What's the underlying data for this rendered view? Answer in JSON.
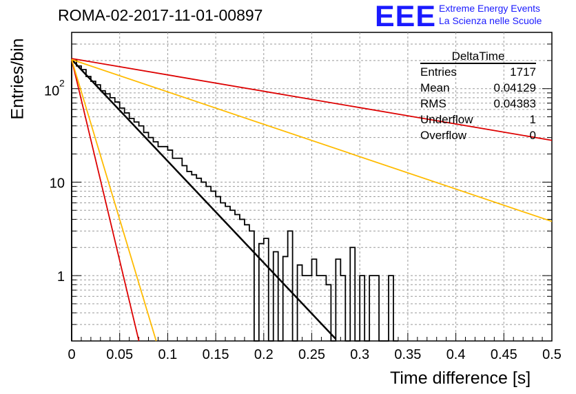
{
  "header": {
    "title": "ROMA-02-2017-11-01-00897",
    "logo_text": "EEE",
    "logo_line1": "Extreme Energy Events",
    "logo_line2": "La Scienza nelle Scuole"
  },
  "stats": {
    "title": "DeltaTime",
    "rows": [
      {
        "label": "Entries",
        "value": "1717"
      },
      {
        "label": "Mean",
        "value": "0.04129"
      },
      {
        "label": "RMS",
        "value": "0.04383"
      },
      {
        "label": "Underflow",
        "value": "1"
      },
      {
        "label": "Overflow",
        "value": "0"
      }
    ]
  },
  "chart_data": {
    "type": "bar",
    "xlabel": "Time difference [s]",
    "ylabel": "Entries/bin",
    "xlim": [
      0,
      0.5
    ],
    "ylim": [
      0.2,
      400
    ],
    "y_scale": "log",
    "grid": true,
    "x_ticks": [
      "0",
      "0.05",
      "0.1",
      "0.15",
      "0.2",
      "0.25",
      "0.3",
      "0.35",
      "0.4",
      "0.45",
      "0.5"
    ],
    "y_ticks": [
      {
        "value": 1,
        "label": "1"
      },
      {
        "value": 10,
        "label": "10"
      },
      {
        "value": 100,
        "label": "10",
        "exp": "2"
      }
    ],
    "histogram": {
      "bin_width": 0.005,
      "color": "#000000",
      "counts": [
        200,
        175,
        160,
        135,
        120,
        110,
        95,
        88,
        80,
        72,
        62,
        55,
        48,
        44,
        40,
        34,
        30,
        27,
        24,
        24,
        22,
        18,
        18,
        15,
        13,
        12,
        11,
        10,
        9,
        8,
        7,
        6,
        5.5,
        5,
        4.5,
        4,
        3.5,
        3,
        0,
        2.2,
        2.5,
        0,
        1.8,
        0,
        1.6,
        3,
        0,
        1.3,
        1,
        1,
        1.5,
        1,
        1,
        0.8,
        0,
        1.5,
        1,
        0,
        2,
        0,
        1,
        0,
        1,
        1,
        0,
        0,
        1,
        0
      ]
    },
    "fits": [
      {
        "name": "",
        "color": "#000000",
        "x": [
          0,
          0.275
        ],
        "y": [
          205,
          0.21
        ],
        "width": 2.5
      },
      {
        "name": "",
        "color": "#dd0000",
        "x": [
          0,
          0.5
        ],
        "y": [
          210,
          28
        ],
        "width": 1.8
      },
      {
        "name": "",
        "color": "#ffbb00",
        "x": [
          0,
          0.5
        ],
        "y": [
          205,
          3.8
        ],
        "width": 1.8
      },
      {
        "name": "",
        "color": "#dd0000",
        "x": [
          0,
          0.07
        ],
        "y": [
          205,
          0.2
        ],
        "width": 1.8
      },
      {
        "name": "",
        "color": "#ffbb00",
        "x": [
          0,
          0.088
        ],
        "y": [
          205,
          0.2
        ],
        "width": 1.8
      }
    ]
  }
}
